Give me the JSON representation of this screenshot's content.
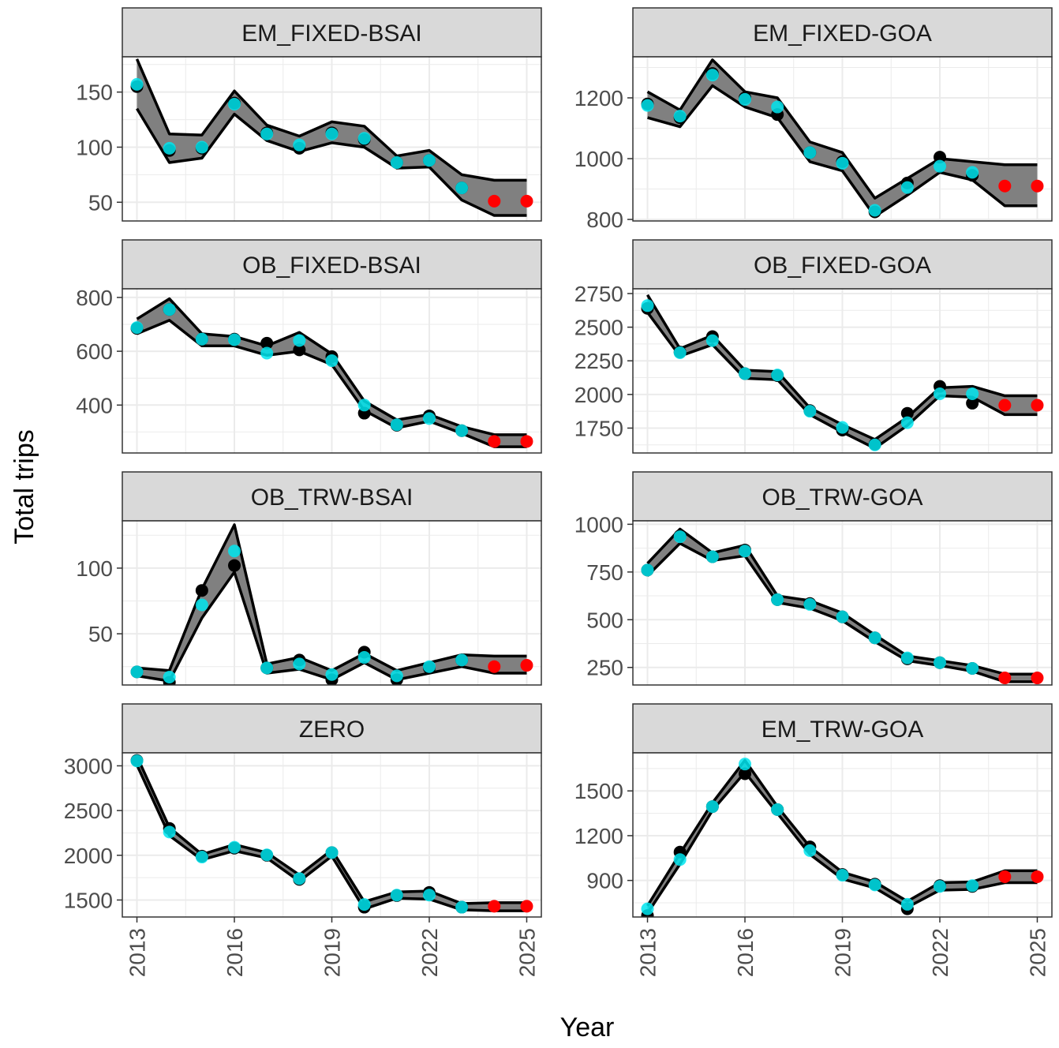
{
  "figure": {
    "xlabel": "Year",
    "ylabel": "Total trips",
    "x_ticks": [
      2013,
      2016,
      2019,
      2022,
      2025
    ],
    "colors": {
      "actual": "#000000",
      "predicted": "#00e5ee",
      "forecast": "#ff0000",
      "ribbon": "#808080",
      "ribbon_edge": "#000000",
      "strip_fill": "#d9d9d9",
      "grid": "#ebebeb",
      "axis_text": "#4d4d4d"
    }
  },
  "chart_data": [
    {
      "type": "line",
      "title": "EM_FIXED-BSAI",
      "x": [
        2013,
        2014,
        2015,
        2016,
        2017,
        2018,
        2019,
        2020,
        2021,
        2022,
        2023,
        2024,
        2025
      ],
      "ylim": [
        33,
        182
      ],
      "y_ticks": [
        50,
        100,
        150
      ],
      "actual": [
        155,
        97,
        99,
        140,
        113,
        99,
        113,
        107,
        86,
        88,
        63,
        null,
        null
      ],
      "predicted": [
        157,
        99,
        100,
        139,
        112,
        102,
        112,
        108,
        86,
        88,
        63,
        null,
        null
      ],
      "forecast": [
        null,
        null,
        null,
        null,
        null,
        null,
        null,
        null,
        null,
        null,
        null,
        51,
        51
      ],
      "band_upper": [
        180,
        112,
        111,
        151,
        120,
        110,
        123,
        119,
        92,
        97,
        75,
        70,
        70
      ],
      "band_lower": [
        135,
        86,
        90,
        130,
        106,
        96,
        104,
        100,
        81,
        82,
        52,
        38,
        38
      ]
    },
    {
      "type": "line",
      "title": "EM_FIXED-GOA",
      "x": [
        2013,
        2014,
        2015,
        2016,
        2017,
        2018,
        2019,
        2020,
        2021,
        2022,
        2023,
        2024,
        2025
      ],
      "ylim": [
        795,
        1335
      ],
      "y_ticks": [
        800,
        1000,
        1200
      ],
      "actual": [
        1180,
        1135,
        1280,
        1200,
        1145,
        1020,
        990,
        825,
        920,
        1005,
        945,
        null,
        null
      ],
      "predicted": [
        1175,
        1140,
        1275,
        1195,
        1170,
        1020,
        985,
        830,
        905,
        975,
        955,
        null,
        null
      ],
      "forecast": [
        null,
        null,
        null,
        null,
        null,
        null,
        null,
        null,
        null,
        null,
        null,
        910,
        910
      ],
      "band_upper": [
        1220,
        1160,
        1325,
        1220,
        1200,
        1055,
        1020,
        870,
        935,
        1000,
        990,
        980,
        980
      ],
      "band_lower": [
        1135,
        1105,
        1240,
        1170,
        1135,
        990,
        960,
        810,
        880,
        955,
        930,
        845,
        845
      ]
    },
    {
      "type": "line",
      "title": "OB_FIXED-BSAI",
      "x": [
        2013,
        2014,
        2015,
        2016,
        2017,
        2018,
        2019,
        2020,
        2021,
        2022,
        2023,
        2024,
        2025
      ],
      "ylim": [
        222,
        832
      ],
      "y_ticks": [
        400,
        600,
        800
      ],
      "actual": [
        685,
        755,
        645,
        645,
        630,
        605,
        580,
        370,
        325,
        360,
        305,
        null,
        null
      ],
      "predicted": [
        688,
        755,
        645,
        643,
        593,
        640,
        565,
        400,
        327,
        350,
        305,
        null,
        null
      ],
      "forecast": [
        null,
        null,
        null,
        null,
        null,
        null,
        null,
        null,
        null,
        null,
        null,
        265,
        265
      ],
      "band_upper": [
        720,
        795,
        665,
        655,
        620,
        670,
        590,
        415,
        345,
        365,
        320,
        290,
        290
      ],
      "band_lower": [
        665,
        715,
        620,
        620,
        585,
        600,
        550,
        380,
        315,
        340,
        295,
        245,
        245
      ]
    },
    {
      "type": "line",
      "title": "OB_FIXED-GOA",
      "x": [
        2013,
        2014,
        2015,
        2016,
        2017,
        2018,
        2019,
        2020,
        2021,
        2022,
        2023,
        2024,
        2025
      ],
      "ylim": [
        1565,
        2785
      ],
      "y_ticks": [
        1750,
        2000,
        2250,
        2500,
        2750
      ],
      "actual": [
        2640,
        2315,
        2430,
        2155,
        2140,
        1880,
        1735,
        1630,
        1860,
        2060,
        1935,
        null,
        null
      ],
      "predicted": [
        2660,
        2310,
        2400,
        2155,
        2145,
        1875,
        1755,
        1625,
        1790,
        2005,
        2005,
        null,
        null
      ],
      "forecast": [
        null,
        null,
        null,
        null,
        null,
        null,
        null,
        null,
        null,
        null,
        null,
        1920,
        1920
      ],
      "band_upper": [
        2740,
        2340,
        2440,
        2180,
        2170,
        1900,
        1775,
        1665,
        1830,
        2050,
        2060,
        1990,
        1990
      ],
      "band_lower": [
        2610,
        2285,
        2370,
        2120,
        2110,
        1850,
        1720,
        1600,
        1770,
        1990,
        1980,
        1850,
        1850
      ]
    },
    {
      "type": "line",
      "title": "OB_TRW-BSAI",
      "x": [
        2013,
        2014,
        2015,
        2016,
        2017,
        2018,
        2019,
        2020,
        2021,
        2022,
        2023,
        2024,
        2025
      ],
      "ylim": [
        11,
        136
      ],
      "y_ticks": [
        50,
        100
      ],
      "actual": [
        21,
        13,
        83,
        102,
        24,
        30,
        15,
        36,
        15,
        24,
        30,
        null,
        null
      ],
      "predicted": [
        21,
        17,
        72,
        113,
        24,
        27,
        19,
        32,
        18,
        25,
        30,
        null,
        null
      ],
      "forecast": [
        null,
        null,
        null,
        null,
        null,
        null,
        null,
        null,
        null,
        null,
        null,
        25,
        26
      ],
      "band_upper": [
        24,
        22,
        84,
        133,
        27,
        32,
        22,
        35,
        22,
        28,
        34,
        33,
        33
      ],
      "band_lower": [
        18,
        14,
        62,
        97,
        20,
        23,
        15,
        28,
        15,
        20,
        25,
        20,
        20
      ]
    },
    {
      "type": "line",
      "title": "OB_TRW-GOA",
      "x": [
        2013,
        2014,
        2015,
        2016,
        2017,
        2018,
        2019,
        2020,
        2021,
        2022,
        2023,
        2024,
        2025
      ],
      "ylim": [
        158,
        1018
      ],
      "y_ticks": [
        250,
        500,
        750,
        1000
      ],
      "actual": [
        760,
        940,
        830,
        865,
        605,
        585,
        515,
        405,
        295,
        275,
        245,
        null,
        null
      ],
      "predicted": [
        760,
        935,
        830,
        860,
        605,
        580,
        515,
        405,
        300,
        275,
        245,
        null,
        null
      ],
      "forecast": [
        null,
        null,
        null,
        null,
        null,
        null,
        null,
        null,
        null,
        null,
        null,
        195,
        195
      ],
      "band_upper": [
        795,
        975,
        850,
        890,
        625,
        600,
        535,
        420,
        310,
        285,
        260,
        215,
        215
      ],
      "band_lower": [
        730,
        900,
        810,
        835,
        590,
        560,
        495,
        385,
        285,
        260,
        230,
        175,
        175
      ]
    },
    {
      "type": "line",
      "title": "ZERO",
      "x": [
        2013,
        2014,
        2015,
        2016,
        2017,
        2018,
        2019,
        2020,
        2021,
        2022,
        2023,
        2024,
        2025
      ],
      "ylim": [
        1310,
        3145
      ],
      "y_ticks": [
        1500,
        2000,
        2500,
        3000
      ],
      "actual": [
        3060,
        2300,
        1990,
        2080,
        2000,
        1730,
        2030,
        1420,
        1550,
        1585,
        1420,
        null,
        null
      ],
      "predicted": [
        3055,
        2260,
        1980,
        2090,
        2005,
        1740,
        2030,
        1450,
        1555,
        1555,
        1420,
        null,
        null
      ],
      "forecast": [
        null,
        null,
        null,
        null,
        null,
        null,
        null,
        null,
        null,
        null,
        null,
        1430,
        1430
      ],
      "band_upper": [
        3105,
        2310,
        2010,
        2120,
        2030,
        1780,
        2060,
        1480,
        1590,
        1600,
        1460,
        1470,
        1470
      ],
      "band_lower": [
        3010,
        2220,
        1950,
        2050,
        1970,
        1710,
        1990,
        1400,
        1520,
        1510,
        1390,
        1380,
        1380
      ]
    },
    {
      "type": "line",
      "title": "EM_TRW-GOA",
      "x": [
        2013,
        2014,
        2015,
        2016,
        2017,
        2018,
        2019,
        2020,
        2021,
        2022,
        2023,
        2024,
        2025
      ],
      "ylim": [
        655,
        1755
      ],
      "y_ticks": [
        900,
        1200,
        1500
      ],
      "actual": [
        665,
        1090,
        1395,
        1615,
        1375,
        1125,
        940,
        875,
        710,
        865,
        860,
        null,
        null
      ],
      "predicted": [
        710,
        1040,
        1395,
        1680,
        1375,
        1100,
        935,
        870,
        740,
        860,
        865,
        null,
        null
      ],
      "forecast": [
        null,
        null,
        null,
        null,
        null,
        null,
        null,
        null,
        null,
        null,
        null,
        925,
        925
      ],
      "band_upper": [
        730,
        1080,
        1420,
        1705,
        1395,
        1125,
        955,
        890,
        760,
        885,
        890,
        965,
        965
      ],
      "band_lower": [
        680,
        1010,
        1370,
        1625,
        1350,
        1075,
        910,
        850,
        720,
        835,
        840,
        885,
        885
      ]
    }
  ]
}
